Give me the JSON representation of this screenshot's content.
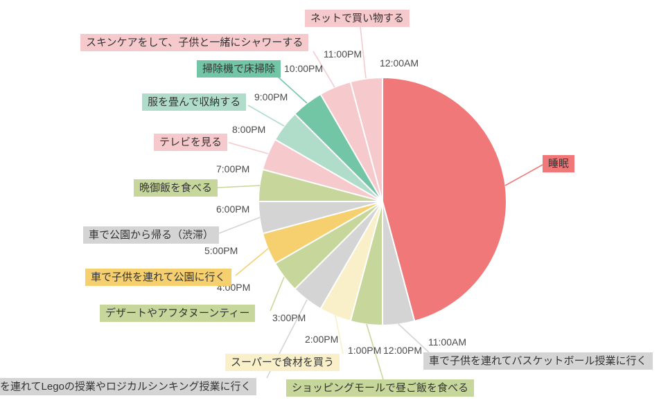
{
  "chart_data": {
    "type": "pie",
    "title": "",
    "description": "24-hour daily schedule clock pie chart; 12:00AM at top, hours proceed clockwise; each slice is an activity labeled by a callout box of the same color",
    "unit": "hours",
    "background": "#FFFFFF",
    "label_text_color": "#333333",
    "tick_text_color": "#4A4A4A",
    "legend_position": "none",
    "slices": [
      {
        "label": "睡眠",
        "start": "12:00AM",
        "end": "11:00AM",
        "hours": 11,
        "color": "#F07878"
      },
      {
        "label": "車で子供を連れてバスケットボール授業に行く",
        "start": "11:00AM",
        "end": "12:00PM",
        "hours": 1,
        "color": "#D4D4D4"
      },
      {
        "label": "ショッピングモールで昼ご飯を食べる",
        "start": "12:00PM",
        "end": "1:00PM",
        "hours": 1,
        "color": "#C7D79B"
      },
      {
        "label": "スーパーで食材を買う",
        "start": "1:00PM",
        "end": "2:00PM",
        "hours": 1,
        "color": "#F9F0C9"
      },
      {
        "label": "を連れてLegoの授業やロジカルシンキング授業に行く",
        "start": "2:00PM",
        "end": "3:00PM",
        "hours": 1,
        "color": "#D4D4D4"
      },
      {
        "label": "デザートやアフタヌーンティー",
        "start": "3:00PM",
        "end": "4:00PM",
        "hours": 1,
        "color": "#C7D79B"
      },
      {
        "label": "車で子供を連れて公園に行く",
        "start": "4:00PM",
        "end": "5:00PM",
        "hours": 1,
        "color": "#F6D06F"
      },
      {
        "label": "車で公園から帰る（渋滞）",
        "start": "5:00PM",
        "end": "6:00PM",
        "hours": 1,
        "color": "#D4D4D4"
      },
      {
        "label": "晩御飯を食べる",
        "start": "6:00PM",
        "end": "7:00PM",
        "hours": 1,
        "color": "#C7D79B"
      },
      {
        "label": "テレビを見る",
        "start": "7:00PM",
        "end": "8:00PM",
        "hours": 1,
        "color": "#F6C9CD"
      },
      {
        "label": "服を畳んで収納する",
        "start": "8:00PM",
        "end": "9:00PM",
        "hours": 1,
        "color": "#B0DDCA"
      },
      {
        "label": "掃除機で床掃除",
        "start": "9:00PM",
        "end": "10:00PM",
        "hours": 1,
        "color": "#72C6A6"
      },
      {
        "label": "スキンケアをして、子供と一緒にシャワーする",
        "start": "10:00PM",
        "end": "11:00PM",
        "hours": 1,
        "color": "#F6C9CD"
      },
      {
        "label": "ネットで買い物する",
        "start": "11:00PM",
        "end": "12:00AM",
        "hours": 1,
        "color": "#F6C9CD"
      }
    ],
    "time_ticks": [
      "12:00AM",
      "11:00AM",
      "12:00PM",
      "1:00PM",
      "2:00PM",
      "3:00PM",
      "4:00PM",
      "5:00PM",
      "6:00PM",
      "7:00PM",
      "8:00PM",
      "9:00PM",
      "10:00PM",
      "11:00PM"
    ]
  }
}
